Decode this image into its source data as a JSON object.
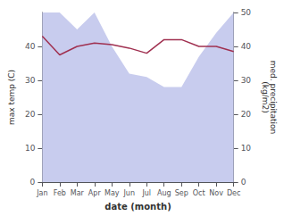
{
  "chart_data": {
    "type": "line",
    "xlabel": "date (month)",
    "ylabel": "max temp (C)",
    "y2label": "med. precipitation\n(kg/m2)",
    "categories": [
      "Jan",
      "Feb",
      "Mar",
      "Apr",
      "May",
      "Jun",
      "Jul",
      "Aug",
      "Sep",
      "Oct",
      "Nov",
      "Dec"
    ],
    "series": [
      {
        "type": "area",
        "axis": "y2",
        "color": "#c8ccee",
        "values": [
          50,
          50,
          45,
          50,
          40,
          32,
          31,
          28,
          28,
          37,
          44,
          50
        ]
      },
      {
        "type": "line",
        "color": "#a03050",
        "values": [
          43,
          37.5,
          40,
          41,
          40.5,
          39.5,
          38,
          42,
          42,
          40,
          40,
          38.5
        ]
      }
    ],
    "ylim": [
      0,
      50
    ],
    "yticks": [
      0,
      10,
      20,
      30,
      40
    ],
    "y2lim": [
      0,
      50
    ],
    "y2ticks": [
      0,
      10,
      20,
      30,
      40,
      50
    ],
    "grid": false
  }
}
